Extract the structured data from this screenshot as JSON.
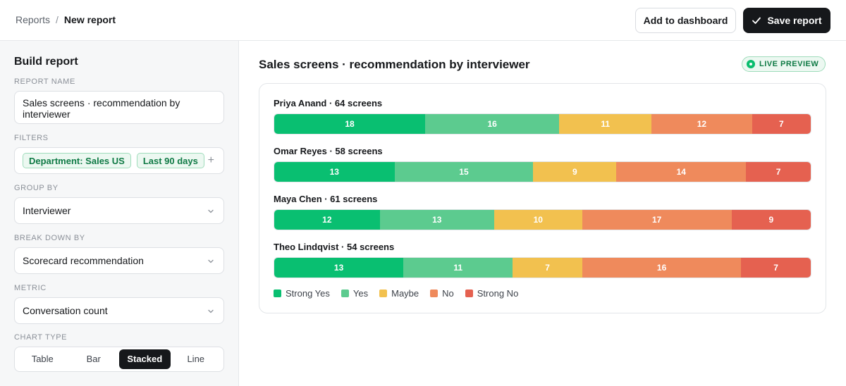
{
  "breadcrumb": {
    "parent": "Reports",
    "separator": "/",
    "current": "New report"
  },
  "actions": {
    "add_to_dashboard": "Add to dashboard",
    "save_report": "Save report"
  },
  "sidebar": {
    "title": "Build report",
    "report_name": {
      "label": "REPORT NAME",
      "value": "Sales screens · recommendation by interviewer"
    },
    "filters": {
      "label": "FILTERS",
      "chips": [
        "Department: Sales US",
        "Last 90 days"
      ],
      "add": "+"
    },
    "group_by": {
      "label": "GROUP BY",
      "value": "Interviewer"
    },
    "break_down_by": {
      "label": "BREAK DOWN BY",
      "value": "Scorecard recommendation"
    },
    "metric": {
      "label": "METRIC",
      "value": "Conversation count"
    },
    "chart_type": {
      "label": "CHART TYPE",
      "options": [
        "Table",
        "Bar",
        "Stacked",
        "Line"
      ],
      "selected": "Stacked"
    }
  },
  "main": {
    "title": "Sales screens · recommendation by interviewer",
    "badge": "LIVE PREVIEW"
  },
  "colors": {
    "strong_yes": "#09bf71",
    "yes": "#5ccb8f",
    "maybe": "#f2c14f",
    "no": "#ef8a5c",
    "strong_no": "#e56150",
    "accent": "#0f7a45"
  },
  "chart_data": {
    "type": "bar",
    "stacked": true,
    "orientation": "horizontal",
    "categories": [
      "Priya Anand · 64 screens",
      "Omar Reyes · 58 screens",
      "Maya Chen · 61 screens",
      "Theo Lindqvist · 54 screens"
    ],
    "series": [
      {
        "name": "Strong Yes",
        "color": "#09bf71",
        "values": [
          18,
          13,
          12,
          13
        ]
      },
      {
        "name": "Yes",
        "color": "#5ccb8f",
        "values": [
          16,
          15,
          13,
          11
        ]
      },
      {
        "name": "Maybe",
        "color": "#f2c14f",
        "values": [
          11,
          9,
          10,
          7
        ]
      },
      {
        "name": "No",
        "color": "#ef8a5c",
        "values": [
          12,
          14,
          17,
          16
        ]
      },
      {
        "name": "Strong No",
        "color": "#e56150",
        "values": [
          7,
          7,
          9,
          7
        ]
      }
    ],
    "legend": "bottom-left"
  }
}
